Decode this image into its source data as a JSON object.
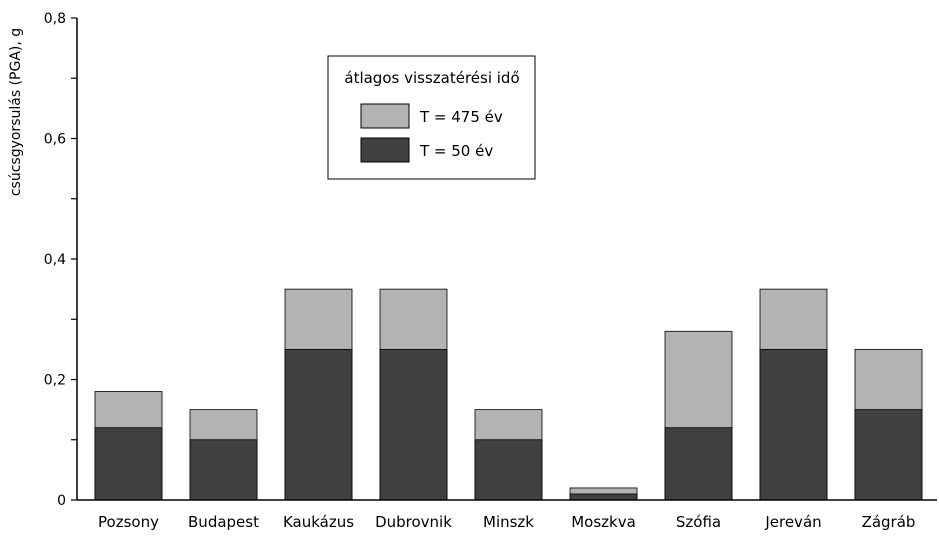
{
  "chart_data": {
    "type": "bar",
    "stacked": false,
    "overlap": true,
    "categories": [
      "Pozsony",
      "Budapest",
      "Kaukázus",
      "Dubrovnik",
      "Minszk",
      "Moszkva",
      "Szófia",
      "Jereván",
      "Zágráb"
    ],
    "series": [
      {
        "name": "T = 475 év",
        "values": [
          0.18,
          0.15,
          0.35,
          0.35,
          0.15,
          0.02,
          0.28,
          0.35,
          0.25
        ],
        "color": "#b3b3b3"
      },
      {
        "name": "T = 50 év",
        "values": [
          0.12,
          0.1,
          0.25,
          0.25,
          0.1,
          0.01,
          0.12,
          0.25,
          0.15
        ],
        "color": "#404040"
      }
    ],
    "ylabel": "csúcsgyorsulás (PGA), g",
    "ylim": [
      0,
      0.8
    ],
    "yticks": [
      "0",
      "0,2",
      "0,4",
      "0,6",
      "0,8"
    ],
    "ytick_values": [
      0,
      0.2,
      0.4,
      0.6,
      0.8
    ],
    "legend": {
      "title": "átlagos visszatérési idő",
      "placement": "top-center"
    },
    "grid": false
  }
}
